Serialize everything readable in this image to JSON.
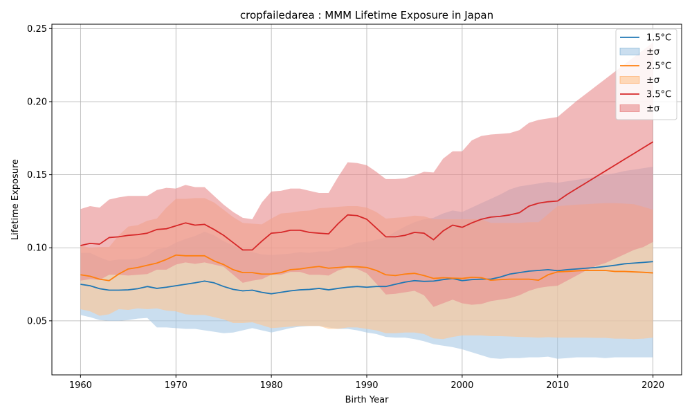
{
  "chart_data": {
    "type": "line",
    "title": "cropfailedarea : MMM Lifetime Exposure in Japan",
    "xlabel": "Birth Year",
    "ylabel": "Lifetime Exposure",
    "xlim": [
      1957,
      2023
    ],
    "ylim": [
      0.013,
      0.253
    ],
    "xticks": [
      1960,
      1970,
      1980,
      1990,
      2000,
      2010,
      2020
    ],
    "xtick_labels": [
      "1960",
      "1970",
      "1980",
      "1990",
      "2000",
      "2010",
      "2020"
    ],
    "yticks": [
      0.05,
      0.1,
      0.15,
      0.2,
      0.25
    ],
    "ytick_labels": [
      "0.05",
      "0.10",
      "0.15",
      "0.20",
      "0.25"
    ],
    "grid": true,
    "legend_position": "top-right",
    "x": [
      1960,
      1961,
      1962,
      1963,
      1964,
      1965,
      1966,
      1967,
      1968,
      1969,
      1970,
      1971,
      1972,
      1973,
      1974,
      1975,
      1976,
      1977,
      1978,
      1979,
      1980,
      1981,
      1982,
      1983,
      1984,
      1985,
      1986,
      1987,
      1988,
      1989,
      1990,
      1991,
      1992,
      1993,
      1994,
      1995,
      1996,
      1997,
      1998,
      1999,
      2000,
      2001,
      2002,
      2003,
      2004,
      2005,
      2006,
      2007,
      2008,
      2009,
      2010,
      2011,
      2012,
      2013,
      2014,
      2015,
      2016,
      2017,
      2018,
      2019,
      2020
    ],
    "series": [
      {
        "name": "1.5°C",
        "band_label": "±σ",
        "color": "#1f77b4",
        "band_color": "#a6c8e4",
        "mean": [
          0.075,
          0.074,
          0.072,
          0.071,
          0.071,
          0.0712,
          0.072,
          0.0735,
          0.0722,
          0.073,
          0.074,
          0.075,
          0.076,
          0.0772,
          0.076,
          0.0735,
          0.0715,
          0.0705,
          0.071,
          0.0695,
          0.0685,
          0.0695,
          0.0705,
          0.0712,
          0.0715,
          0.0722,
          0.0712,
          0.0722,
          0.073,
          0.0735,
          0.073,
          0.0735,
          0.0735,
          0.075,
          0.0765,
          0.0775,
          0.077,
          0.0772,
          0.0782,
          0.079,
          0.0775,
          0.0782,
          0.0785,
          0.0785,
          0.08,
          0.082,
          0.083,
          0.084,
          0.0845,
          0.085,
          0.0843,
          0.085,
          0.0855,
          0.086,
          0.0865,
          0.0872,
          0.088,
          0.089,
          0.0895,
          0.09,
          0.0905
        ],
        "upper": [
          0.0965,
          0.0965,
          0.0935,
          0.091,
          0.092,
          0.092,
          0.0925,
          0.0945,
          0.099,
          0.1,
          0.1035,
          0.106,
          0.108,
          0.111,
          0.1085,
          0.1045,
          0.1015,
          0.0985,
          0.097,
          0.0955,
          0.095,
          0.0955,
          0.096,
          0.097,
          0.0965,
          0.0975,
          0.0975,
          0.0995,
          0.101,
          0.1035,
          0.104,
          0.1055,
          0.107,
          0.111,
          0.1145,
          0.1175,
          0.1195,
          0.1205,
          0.1235,
          0.1255,
          0.1245,
          0.1275,
          0.1305,
          0.1335,
          0.1365,
          0.14,
          0.142,
          0.143,
          0.144,
          0.145,
          0.1445,
          0.1455,
          0.1465,
          0.1475,
          0.1485,
          0.15,
          0.151,
          0.1525,
          0.1535,
          0.1545,
          0.1555
        ],
        "lower": [
          0.054,
          0.0525,
          0.0505,
          0.05,
          0.05,
          0.0505,
          0.0515,
          0.052,
          0.0455,
          0.0455,
          0.045,
          0.0445,
          0.0445,
          0.0435,
          0.0425,
          0.0415,
          0.042,
          0.0435,
          0.045,
          0.0435,
          0.042,
          0.0435,
          0.045,
          0.046,
          0.0465,
          0.0465,
          0.0455,
          0.0445,
          0.0445,
          0.0435,
          0.042,
          0.041,
          0.039,
          0.0385,
          0.0385,
          0.0375,
          0.036,
          0.034,
          0.033,
          0.032,
          0.0305,
          0.0285,
          0.0265,
          0.0245,
          0.024,
          0.0245,
          0.0245,
          0.025,
          0.025,
          0.0255,
          0.024,
          0.0245,
          0.025,
          0.025,
          0.025,
          0.0245,
          0.025,
          0.025,
          0.025,
          0.025,
          0.025
        ]
      },
      {
        "name": "2.5°C",
        "band_label": "±σ",
        "color": "#ff7f0e",
        "band_color": "#ffc58f",
        "mean": [
          0.0815,
          0.0805,
          0.0785,
          0.0775,
          0.082,
          0.0855,
          0.0865,
          0.088,
          0.0895,
          0.092,
          0.095,
          0.0945,
          0.0945,
          0.0945,
          0.091,
          0.0885,
          0.085,
          0.083,
          0.083,
          0.082,
          0.082,
          0.083,
          0.085,
          0.0855,
          0.0865,
          0.0872,
          0.086,
          0.0865,
          0.087,
          0.087,
          0.0865,
          0.0845,
          0.0815,
          0.081,
          0.082,
          0.0825,
          0.081,
          0.079,
          0.0795,
          0.0792,
          0.079,
          0.0798,
          0.0795,
          0.0778,
          0.0782,
          0.0785,
          0.0785,
          0.0785,
          0.0778,
          0.0815,
          0.0835,
          0.0838,
          0.0842,
          0.0845,
          0.0845,
          0.0845,
          0.0838,
          0.0838,
          0.0835,
          0.0832,
          0.0828
        ],
        "upper": [
          0.1015,
          0.1,
          0.1005,
          0.1005,
          0.1085,
          0.1145,
          0.1155,
          0.1185,
          0.12,
          0.1275,
          0.1335,
          0.1335,
          0.134,
          0.134,
          0.131,
          0.126,
          0.121,
          0.117,
          0.1165,
          0.116,
          0.12,
          0.1235,
          0.124,
          0.125,
          0.1255,
          0.127,
          0.1275,
          0.128,
          0.1285,
          0.1285,
          0.1275,
          0.1245,
          0.12,
          0.1205,
          0.121,
          0.122,
          0.1215,
          0.1195,
          0.1195,
          0.1195,
          0.1195,
          0.1195,
          0.1195,
          0.117,
          0.117,
          0.117,
          0.117,
          0.1175,
          0.1175,
          0.123,
          0.1285,
          0.129,
          0.1295,
          0.1298,
          0.1302,
          0.1305,
          0.1305,
          0.1302,
          0.1298,
          0.128,
          0.126
        ],
        "lower": [
          0.058,
          0.0565,
          0.0535,
          0.0545,
          0.058,
          0.0575,
          0.0585,
          0.058,
          0.0585,
          0.057,
          0.0565,
          0.0545,
          0.054,
          0.054,
          0.0525,
          0.051,
          0.0485,
          0.0485,
          0.049,
          0.047,
          0.045,
          0.0455,
          0.046,
          0.0465,
          0.0465,
          0.0465,
          0.0445,
          0.0445,
          0.0455,
          0.0455,
          0.0445,
          0.0435,
          0.0415,
          0.0415,
          0.042,
          0.042,
          0.041,
          0.038,
          0.0375,
          0.039,
          0.04,
          0.04,
          0.04,
          0.0395,
          0.0395,
          0.0393,
          0.039,
          0.0388,
          0.0385,
          0.0388,
          0.0385,
          0.0385,
          0.0385,
          0.0385,
          0.0383,
          0.0383,
          0.0378,
          0.0378,
          0.0375,
          0.0378,
          0.0385
        ]
      },
      {
        "name": "3.5°C",
        "band_label": "±σ",
        "color": "#d62728",
        "band_color": "#e88b8c",
        "mean": [
          0.1015,
          0.103,
          0.1025,
          0.107,
          0.1075,
          0.1085,
          0.109,
          0.11,
          0.1125,
          0.113,
          0.115,
          0.117,
          0.1155,
          0.116,
          0.1125,
          0.1085,
          0.1035,
          0.0985,
          0.0985,
          0.1045,
          0.11,
          0.1105,
          0.112,
          0.112,
          0.1105,
          0.11,
          0.1095,
          0.1165,
          0.1225,
          0.122,
          0.1195,
          0.1135,
          0.1075,
          0.1075,
          0.1085,
          0.1105,
          0.11,
          0.1055,
          0.1115,
          0.1155,
          0.114,
          0.117,
          0.1195,
          0.121,
          0.1215,
          0.1225,
          0.124,
          0.1285,
          0.1305,
          0.1315,
          0.132,
          0.1365,
          0.1405,
          0.1445,
          0.1485,
          0.1525,
          0.1565,
          0.1605,
          0.1645,
          0.1685,
          0.1725
        ],
        "upper": [
          0.1265,
          0.1285,
          0.1275,
          0.133,
          0.1345,
          0.1355,
          0.1355,
          0.1355,
          0.1395,
          0.141,
          0.1405,
          0.143,
          0.1415,
          0.1415,
          0.1355,
          0.1295,
          0.1245,
          0.1205,
          0.1195,
          0.131,
          0.1385,
          0.139,
          0.1405,
          0.1405,
          0.139,
          0.1375,
          0.1375,
          0.1485,
          0.1585,
          0.158,
          0.1565,
          0.152,
          0.147,
          0.147,
          0.1475,
          0.1495,
          0.152,
          0.1515,
          0.161,
          0.166,
          0.166,
          0.1735,
          0.1765,
          0.1775,
          0.178,
          0.1785,
          0.1805,
          0.1855,
          0.1875,
          0.1885,
          0.1895,
          0.195,
          0.2005,
          0.2055,
          0.2105,
          0.2155,
          0.2205,
          0.2255,
          0.2305,
          0.2355,
          0.2405
        ],
        "lower": [
          0.0775,
          0.0785,
          0.078,
          0.0815,
          0.0815,
          0.081,
          0.0815,
          0.082,
          0.085,
          0.085,
          0.0885,
          0.09,
          0.089,
          0.09,
          0.0885,
          0.087,
          0.0815,
          0.076,
          0.0775,
          0.0785,
          0.0815,
          0.0815,
          0.0835,
          0.0835,
          0.0815,
          0.0815,
          0.081,
          0.0845,
          0.0865,
          0.0855,
          0.0825,
          0.0755,
          0.068,
          0.0685,
          0.0695,
          0.0705,
          0.0675,
          0.0595,
          0.062,
          0.0645,
          0.062,
          0.061,
          0.0615,
          0.0635,
          0.0645,
          0.0655,
          0.0675,
          0.0705,
          0.0725,
          0.0735,
          0.074,
          0.0775,
          0.081,
          0.0845,
          0.0875,
          0.0895,
          0.0925,
          0.0955,
          0.0985,
          0.1005,
          0.104
        ]
      }
    ]
  }
}
